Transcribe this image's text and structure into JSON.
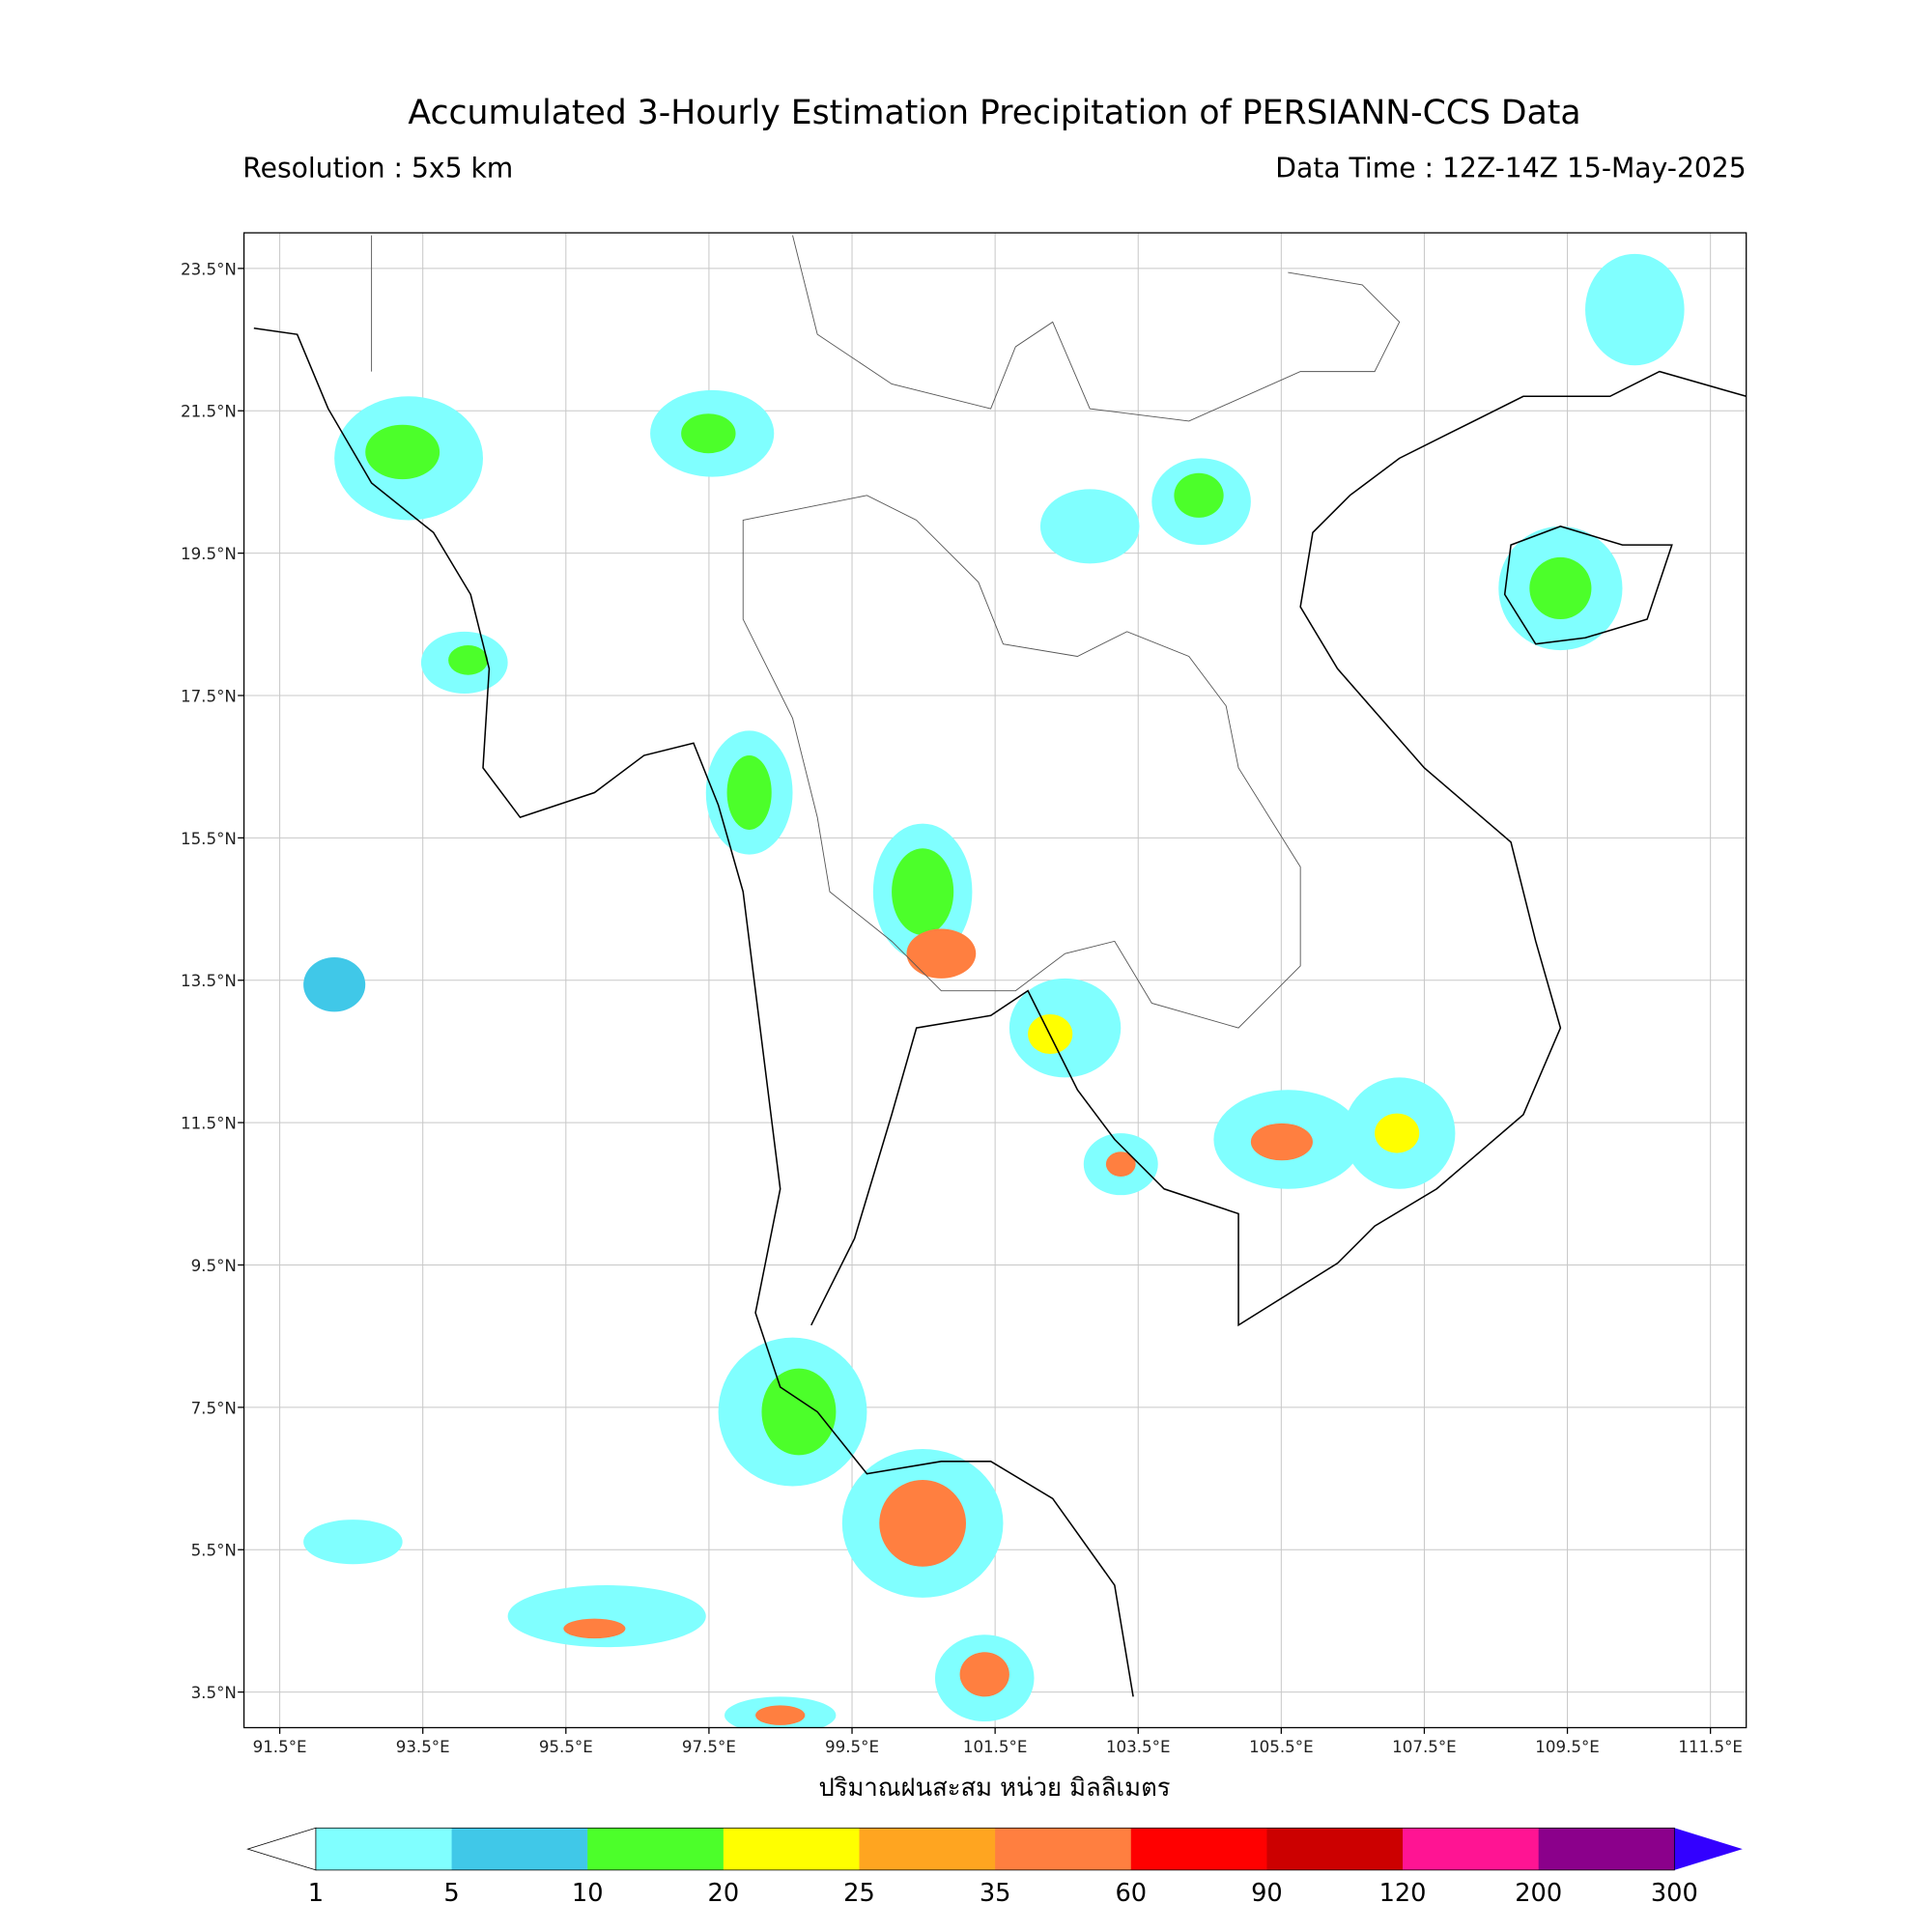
{
  "title": "Accumulated 3-Hourly Estimation Precipitation of PERSIANN-CCS Data",
  "resolution": "Resolution : 5x5 km",
  "data_time": "Data Time : 12Z-14Z 15-May-2025",
  "unit_label": "ปริมาณฝนสะสม หน่วย มิลลิเมตร",
  "map": {
    "xlim": [
      91,
      112
    ],
    "ylim": [
      3,
      24
    ],
    "grid": true,
    "xticks": [
      {
        "value": 91.5,
        "label": "91.5°E"
      },
      {
        "value": 93.5,
        "label": "93.5°E"
      },
      {
        "value": 95.5,
        "label": "95.5°E"
      },
      {
        "value": 97.5,
        "label": "97.5°E"
      },
      {
        "value": 99.5,
        "label": "99.5°E"
      },
      {
        "value": 101.5,
        "label": "101.5°E"
      },
      {
        "value": 103.5,
        "label": "103.5°E"
      },
      {
        "value": 105.5,
        "label": "105.5°E"
      },
      {
        "value": 107.5,
        "label": "107.5°E"
      },
      {
        "value": 109.5,
        "label": "109.5°E"
      },
      {
        "value": 111.5,
        "label": "111.5°E"
      }
    ],
    "yticks": [
      {
        "value": 3.5,
        "label": "3.5°N"
      },
      {
        "value": 5.5,
        "label": "5.5°N"
      },
      {
        "value": 7.5,
        "label": "7.5°N"
      },
      {
        "value": 9.5,
        "label": "9.5°N"
      },
      {
        "value": 11.5,
        "label": "11.5°N"
      },
      {
        "value": 13.5,
        "label": "13.5°N"
      },
      {
        "value": 15.5,
        "label": "15.5°N"
      },
      {
        "value": 17.5,
        "label": "17.5°N"
      },
      {
        "value": 19.5,
        "label": "19.5°N"
      },
      {
        "value": 21.5,
        "label": "21.5°N"
      },
      {
        "value": 23.5,
        "label": "23.5°N"
      }
    ]
  },
  "colorbar": {
    "levels": [
      1,
      5,
      10,
      20,
      25,
      35,
      60,
      90,
      120,
      200,
      300
    ],
    "colors": [
      "#80ffff",
      "#40c8e8",
      "#4cff2a",
      "#ffff00",
      "#ffa520",
      "#ff7f40",
      "#ff0000",
      "#cc0000",
      "#ff1493",
      "#8b008b"
    ],
    "under_color": "#ffffff",
    "over_color": "#3300ff"
  }
}
